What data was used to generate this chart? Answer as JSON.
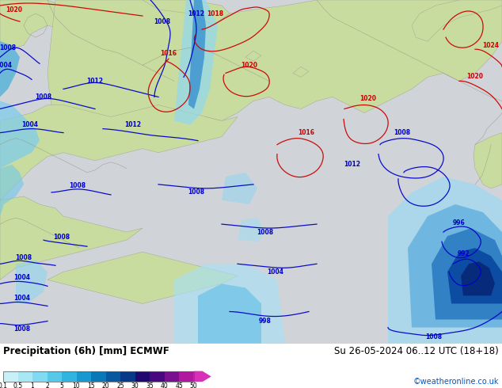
{
  "title_left": "Precipitation (6h) [mm] ECMWF",
  "title_right": "Su 26-05-2024 06..12 UTC (18+18)",
  "copyright": "©weatheronline.co.uk",
  "colorbar_labels": [
    "0.1",
    "0.5",
    "1",
    "2",
    "5",
    "10",
    "15",
    "20",
    "25",
    "30",
    "35",
    "40",
    "45",
    "50"
  ],
  "colorbar_colors": [
    "#c8f0f8",
    "#a8e8f4",
    "#80daf0",
    "#58c8e8",
    "#30b4e0",
    "#1898d0",
    "#0878b8",
    "#0858a0",
    "#083888",
    "#200870",
    "#480880",
    "#781090",
    "#b018a0",
    "#d830b8"
  ],
  "bg_color": "#ffffff",
  "land_color": "#c8dca0",
  "sea_color": "#d8d8d8",
  "fig_width": 6.34,
  "fig_height": 4.9,
  "dpi": 100
}
